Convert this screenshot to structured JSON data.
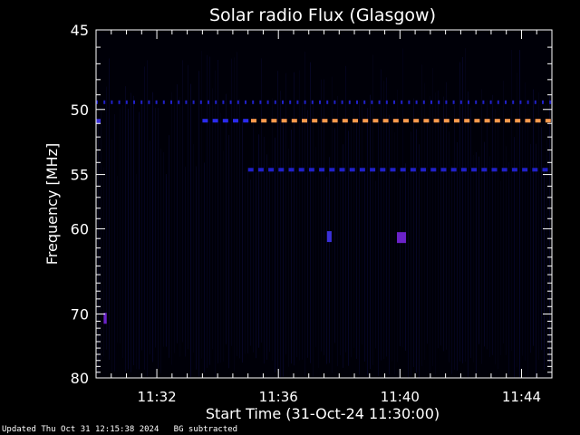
{
  "chart_data": {
    "type": "heatmap",
    "title": "Solar radio Flux (Glasgow)",
    "xlabel": "Start Time (31-Oct-24 11:30:00)",
    "ylabel": "Frequency [MHz]",
    "x_ticks": [
      "11:32",
      "11:36",
      "11:40",
      "11:44"
    ],
    "x_tick_minutes": [
      2,
      6,
      10,
      14
    ],
    "xlim_minutes": [
      0,
      15
    ],
    "y_ticks": [
      45,
      50,
      55,
      60,
      70,
      80
    ],
    "ylim": [
      45,
      80
    ],
    "y_scale": "reciprocal",
    "grid": false,
    "features": [
      {
        "name": "interference-line-49.5",
        "freq": 49.5,
        "t_start": 0.0,
        "t_end": 15.0,
        "intensity": 0.45,
        "style": "dotted"
      },
      {
        "name": "interference-line-50.8-weak",
        "freq": 50.8,
        "t_start": 3.5,
        "t_end": 5.1,
        "intensity": 0.55,
        "style": "dashed"
      },
      {
        "name": "interference-line-50.8-strong",
        "freq": 50.8,
        "t_start": 5.1,
        "t_end": 15.0,
        "intensity": 1.0,
        "style": "dashed"
      },
      {
        "name": "interference-line-50.8-left",
        "freq": 50.8,
        "t_start": 0.0,
        "t_end": 0.15,
        "intensity": 0.6,
        "style": "solid"
      },
      {
        "name": "interference-line-54.6",
        "freq": 54.6,
        "t_start": 5.0,
        "t_end": 15.0,
        "intensity": 0.45,
        "style": "dashed"
      },
      {
        "name": "burst-60.8-a",
        "freq": 60.8,
        "t_start": 7.6,
        "t_end": 7.75,
        "intensity": 0.55,
        "style": "solid"
      },
      {
        "name": "burst-60.9-b",
        "freq": 60.9,
        "t_start": 9.9,
        "t_end": 10.2,
        "intensity": 0.7,
        "style": "solid"
      },
      {
        "name": "burst-70.6",
        "freq": 70.6,
        "t_start": 0.25,
        "t_end": 0.35,
        "intensity": 0.65,
        "style": "solid"
      }
    ]
  },
  "footer": {
    "updated": "Updated Thu Oct 31 12:15:38 2024",
    "note": "BG subtracted"
  }
}
